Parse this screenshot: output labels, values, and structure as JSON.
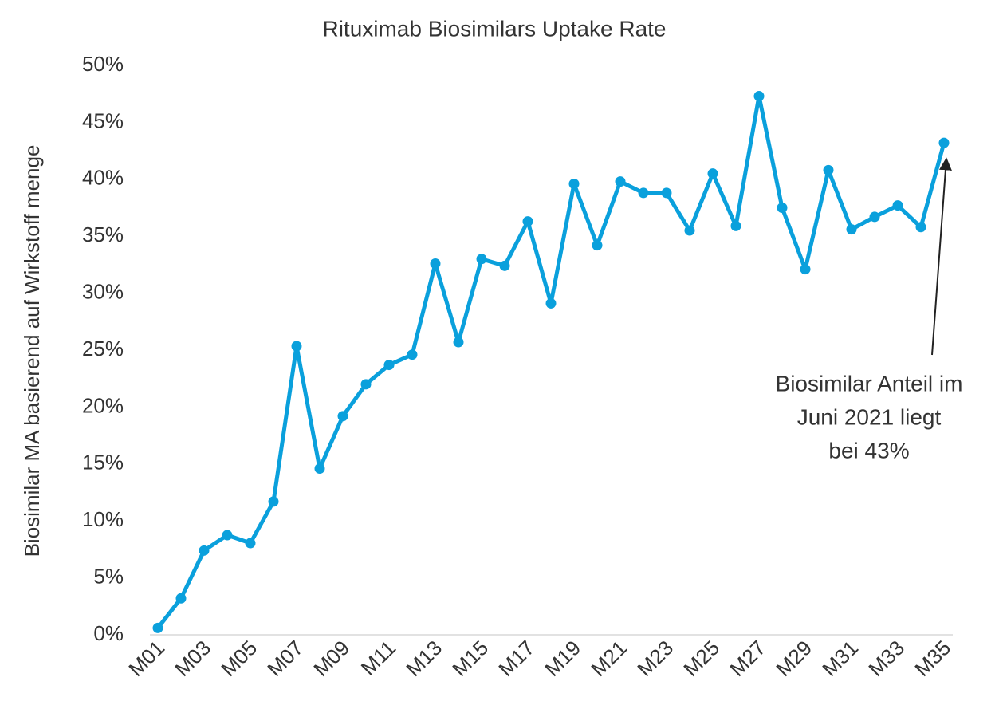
{
  "chart_data": {
    "type": "line",
    "title": "Rituximab Biosimilars Uptake Rate",
    "y_label": "Biosimilar MA basierend auf Wirkstoff menge",
    "annotation": [
      "Biosimilar Anteil im",
      "Juni 2021 liegt",
      "bei 43%"
    ],
    "categories": [
      "M01",
      null,
      "M03",
      null,
      "M05",
      null,
      "M07",
      null,
      "M09",
      null,
      "M11",
      null,
      "M13",
      null,
      "M15",
      null,
      "M17",
      null,
      "M19",
      null,
      "M21",
      null,
      "M23",
      null,
      "M25",
      null,
      "M27",
      null,
      "M29",
      null,
      "M31",
      null,
      "M33",
      null,
      "M35"
    ],
    "values": [
      0.6,
      3.2,
      7.4,
      8.75,
      8.05,
      11.7,
      25.35,
      14.6,
      19.2,
      22.0,
      23.7,
      24.6,
      32.6,
      25.7,
      33.0,
      32.4,
      36.3,
      29.1,
      39.6,
      34.2,
      39.8,
      38.8,
      38.8,
      35.5,
      40.5,
      35.9,
      47.3,
      37.5,
      32.1,
      40.8,
      35.6,
      36.7,
      37.7,
      35.8,
      43.2
    ],
    "color": "#0aa0dc",
    "ylim": [
      0,
      50
    ],
    "yticks": [
      {
        "value": 0,
        "label": "0%"
      },
      {
        "value": 5,
        "label": "5%"
      },
      {
        "value": 10,
        "label": "10%"
      },
      {
        "value": 15,
        "label": "15%"
      },
      {
        "value": 20,
        "label": "20%"
      },
      {
        "value": 25,
        "label": "25%"
      },
      {
        "value": 30,
        "label": "30%"
      },
      {
        "value": 35,
        "label": "35%"
      },
      {
        "value": 40,
        "label": "40%"
      },
      {
        "value": 45,
        "label": "45%"
      },
      {
        "value": 50,
        "label": "50%"
      }
    ],
    "grid": false
  }
}
